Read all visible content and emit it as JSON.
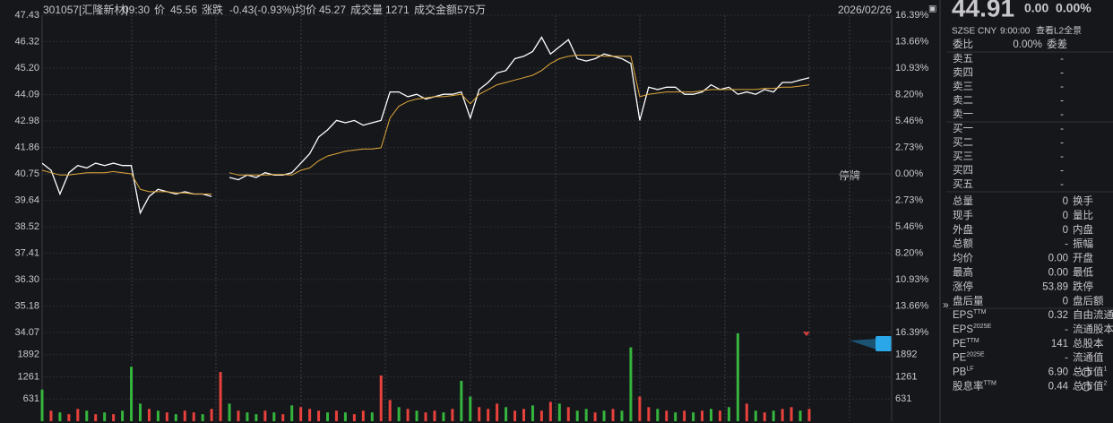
{
  "header": {
    "code": "301057[汇隆新材]",
    "time": "09:30",
    "price_label": "价",
    "price": "45.56",
    "change_label": "涨跌",
    "change": "-0.43(-0.93%)",
    "avg_label": "均价",
    "avg": "45.27",
    "volume_label": "成交量",
    "volume": "1271",
    "amount_label": "成交金额",
    "amount": "575万",
    "date": "2026/02/26",
    "watermark": "停牌"
  },
  "chart_data": [
    {
      "type": "line",
      "series": [
        {
          "color": "#ffffff",
          "values": [
            41.2,
            40.9,
            39.9,
            40.8,
            41.1,
            41.0,
            41.2,
            41.1,
            41.2,
            41.1,
            41.1,
            39.1,
            39.8,
            40.1,
            40.0,
            39.9,
            40.0,
            39.9,
            39.9,
            39.8,
            null,
            40.6,
            40.5,
            40.7,
            40.6,
            40.8,
            40.7,
            40.7,
            40.8,
            41.2,
            41.6,
            42.3,
            42.6,
            43.0,
            42.9,
            43.0,
            42.8,
            42.9,
            43.0,
            44.2,
            44.2,
            44.0,
            44.1,
            43.9,
            44.0,
            44.1,
            44.1,
            44.2,
            43.1,
            44.3,
            44.6,
            45.0,
            45.1,
            45.6,
            45.7,
            45.9,
            46.5,
            45.8,
            46.1,
            46.4,
            45.6,
            45.5,
            45.6,
            45.8,
            45.7,
            45.6,
            45.4,
            43.0,
            44.4,
            44.3,
            44.4,
            44.4,
            44.1,
            44.1,
            44.2,
            44.5,
            44.3,
            44.4,
            44.1,
            44.2,
            44.1,
            44.3,
            44.2,
            44.6,
            44.6,
            44.7,
            44.8
          ]
        },
        {
          "color": "#e0a83a",
          "values": [
            40.9,
            40.8,
            40.7,
            40.7,
            40.75,
            40.8,
            40.8,
            40.8,
            40.85,
            40.8,
            40.75,
            40.1,
            40.0,
            40.0,
            40.0,
            39.95,
            39.95,
            39.9,
            39.9,
            39.9,
            null,
            40.8,
            40.7,
            40.7,
            40.7,
            40.7,
            40.72,
            40.72,
            40.7,
            40.9,
            41.0,
            41.3,
            41.5,
            41.6,
            41.7,
            41.75,
            41.8,
            41.8,
            41.85,
            43.1,
            43.6,
            43.8,
            43.9,
            43.95,
            44.0,
            44.0,
            44.05,
            44.1,
            43.7,
            44.1,
            44.3,
            44.5,
            44.6,
            44.7,
            44.8,
            44.9,
            45.1,
            45.4,
            45.6,
            45.7,
            45.75,
            45.75,
            45.75,
            45.7,
            45.7,
            45.7,
            45.7,
            44.0,
            44.1,
            44.15,
            44.2,
            44.2,
            44.2,
            44.2,
            44.25,
            44.3,
            44.3,
            44.3,
            44.3,
            44.3,
            44.3,
            44.35,
            44.35,
            44.4,
            44.4,
            44.45,
            44.5
          ]
        }
      ],
      "ylim": [
        34.07,
        47.43
      ],
      "yticks": [
        47.43,
        46.32,
        {
          "value": 45.2,
          "label": "45.20"
        },
        44.09,
        42.98,
        41.86,
        40.75,
        39.64,
        38.52,
        37.41,
        {
          "value": 36.3,
          "label": "36.30"
        },
        35.18,
        34.07
      ],
      "y2lim": [
        -16.39,
        16.39
      ],
      "y2ticks": [
        {
          "value": 16.39,
          "label": "16.39%"
        },
        {
          "value": 13.66,
          "label": "13.66%"
        },
        {
          "value": 10.93,
          "label": "10.93%"
        },
        {
          "value": 8.2,
          "label": "8.20%"
        },
        {
          "value": 5.46,
          "label": "5.46%"
        },
        {
          "value": 2.73,
          "label": "2.73%"
        },
        {
          "value": 0,
          "label": "0.00%"
        },
        {
          "value": -2.73,
          "label": "2.73%"
        },
        {
          "value": -5.46,
          "label": "5.46%"
        },
        {
          "value": -8.2,
          "label": "8.20%"
        },
        {
          "value": -10.93,
          "label": "10.93%"
        },
        {
          "value": -13.66,
          "label": "13.66%"
        },
        {
          "value": -16.39,
          "label": "16.39%"
        }
      ],
      "grid": true
    },
    {
      "type": "bar",
      "values": [
        900,
        300,
        250,
        200,
        350,
        300,
        200,
        250,
        200,
        300,
        1550,
        500,
        350,
        300,
        250,
        200,
        300,
        250,
        200,
        350,
        1400,
        500,
        300,
        250,
        200,
        300,
        250,
        200,
        450,
        400,
        350,
        300,
        250,
        300,
        250,
        200,
        300,
        250,
        1300,
        600,
        400,
        350,
        300,
        250,
        300,
        250,
        350,
        1150,
        700,
        400,
        350,
        500,
        400,
        300,
        350,
        450,
        300,
        550,
        500,
        400,
        300,
        350,
        250,
        300,
        350,
        300,
        2100,
        700,
        400,
        350,
        300,
        250,
        300,
        250,
        300,
        350,
        300,
        400,
        2500,
        500,
        300,
        250,
        300,
        350,
        400,
        300,
        350
      ],
      "colors": [
        "#35b53d",
        "#e8413c",
        "#35b53d",
        "#e8413c",
        "#e8413c",
        "#35b53d",
        "#e8413c",
        "#35b53d",
        "#e8413c",
        "#35b53d",
        "#35b53d",
        "#35b53d",
        "#e8413c",
        "#35b53d",
        "#e8413c",
        "#35b53d",
        "#e8413c",
        "#e8413c",
        "#35b53d",
        "#e8413c",
        "#e8413c",
        "#35b53d",
        "#e8413c",
        "#35b53d",
        "#35b53d",
        "#e8413c",
        "#35b53d",
        "#e8413c",
        "#35b53d",
        "#e8413c",
        "#e8413c",
        "#e8413c",
        "#35b53d",
        "#e8413c",
        "#35b53d",
        "#e8413c",
        "#e8413c",
        "#35b53d",
        "#e8413c",
        "#e8413c",
        "#35b53d",
        "#e8413c",
        "#35b53d",
        "#e8413c",
        "#e8413c",
        "#35b53d",
        "#e8413c",
        "#35b53d",
        "#35b53d",
        "#e8413c",
        "#e8413c",
        "#e8413c",
        "#35b53d",
        "#e8413c",
        "#e8413c",
        "#35b53d",
        "#e8413c",
        "#e8413c",
        "#35b53d",
        "#e8413c",
        "#35b53d",
        "#35b53d",
        "#e8413c",
        "#35b53d",
        "#e8413c",
        "#35b53d",
        "#35b53d",
        "#e8413c",
        "#e8413c",
        "#35b53d",
        "#e8413c",
        "#35b53d",
        "#e8413c",
        "#35b53d",
        "#e8413c",
        "#35b53d",
        "#e8413c",
        "#35b53d",
        "#35b53d",
        "#e8413c",
        "#35b53d",
        "#e8413c",
        "#35b53d",
        "#e8413c",
        "#e8413c",
        "#35b53d",
        "#e8413c"
      ],
      "ylim": [
        0,
        2523
      ],
      "yticks": [
        1892,
        1261,
        631
      ]
    }
  ],
  "quote": {
    "price": "44.91",
    "change": "0.00",
    "pct": "0.00%",
    "exchange": "SZSE",
    "currency": "CNY",
    "time": "9:00:00",
    "l2": "查看L2全景"
  },
  "order_ratio": {
    "label": "委比",
    "value": "0.00%",
    "label2": "委差"
  },
  "asks": [
    [
      "卖五",
      "-"
    ],
    [
      "卖四",
      "-"
    ],
    [
      "卖三",
      "-"
    ],
    [
      "卖二",
      "-"
    ],
    [
      "卖一",
      "-"
    ]
  ],
  "bids": [
    [
      "买一",
      "-"
    ],
    [
      "买二",
      "-"
    ],
    [
      "买三",
      "-"
    ],
    [
      "买四",
      "-"
    ],
    [
      "买五",
      "-"
    ]
  ],
  "stats": [
    {
      "label": "总量",
      "value": "0",
      "label2": "换手"
    },
    {
      "label": "现手",
      "value": "0",
      "label2": "量比"
    },
    {
      "label": "外盘",
      "value": "0",
      "label2": "内盘"
    },
    {
      "label": "总额",
      "value": "-",
      "label2": "振幅"
    },
    {
      "label": "均价",
      "value": "0.00",
      "label2": "开盘"
    },
    {
      "label": "最高",
      "value": "0.00",
      "label2": "最低"
    },
    {
      "label": "涨停",
      "value": "53.89",
      "label2": "跌停"
    },
    {
      "label": "盘后量",
      "value": "0",
      "label2": "盘后额"
    }
  ],
  "fundamentals": [
    {
      "label": "EPS",
      "sup": "TTM",
      "value": "0.32",
      "label2": "自由流通"
    },
    {
      "label": "EPS",
      "sup": "2025E",
      "value": "-",
      "label2": "流通股本"
    },
    {
      "label": "PE",
      "sup": "TTM",
      "value": "141",
      "label2": "总股本"
    },
    {
      "label": "PE",
      "sup": "2025E",
      "value": "-",
      "label2": "流通值"
    },
    {
      "label": "PB",
      "sup": "LF",
      "value": "6.90",
      "label2": "总市值",
      "sup2": "1"
    },
    {
      "label": "股息率",
      "sup": "TTM",
      "value": "0.44",
      "label2": "总市值",
      "sup2": "2"
    }
  ]
}
